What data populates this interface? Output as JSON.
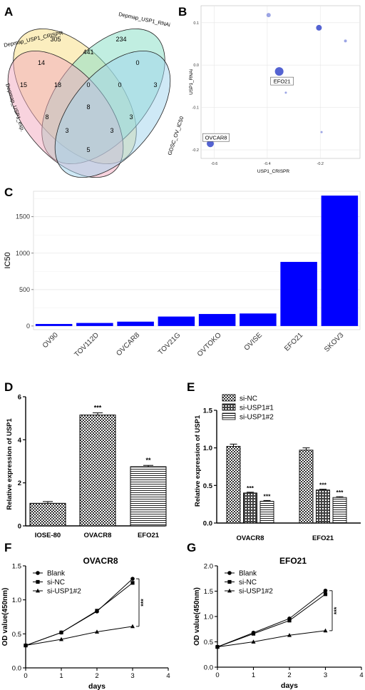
{
  "panel_letters": [
    "A",
    "B",
    "C",
    "D",
    "E",
    "F",
    "G"
  ],
  "chart_data": [
    {
      "type": "venn",
      "panel": "A",
      "sets": [
        "Depmap_USP1_CRISPR",
        "Depmap_USP1_RNAi",
        "Depmap_USP1_exp.",
        "GDSC_OV_IC50"
      ],
      "colors": [
        "#f7e08a",
        "#8ee0c8",
        "#f2a7bd",
        "#9fd3ee"
      ],
      "regions": {
        "crispr_only": "305",
        "rnai_only": "234",
        "exp_only": "15",
        "gdsc_only": "3",
        "crispr_rnai": "441",
        "crispr_exp": "14",
        "rnai_gdsc": "0",
        "exp_gdsc": "5",
        "crispr_gdsc": "0",
        "rnai_exp": "0",
        "crispr_rnai_exp": "18",
        "crispr_rnai_gdsc": "0",
        "crispr_exp_gdsc": "3",
        "rnai_exp_gdsc": "3",
        "all_four": "8",
        "exp_left": "8"
      }
    },
    {
      "type": "scatter",
      "panel": "B",
      "xlabel": "USP1_CRISPR",
      "ylabel": "USP1_RNAi",
      "xlim": [
        -0.65,
        -0.05
      ],
      "ylim": [
        -0.22,
        0.14
      ],
      "xticks": [
        "-0.6",
        "-0.4",
        "-0.2"
      ],
      "yticks": [
        "0.1",
        "0.0",
        "-0.1",
        "-0.2"
      ],
      "points": [
        {
          "x": -0.615,
          "y": -0.185,
          "size": 5,
          "label": "OVCAR8"
        },
        {
          "x": -0.355,
          "y": -0.015,
          "size": 6,
          "label": "EFO21"
        },
        {
          "x": -0.395,
          "y": 0.118,
          "size": 3,
          "label": ""
        },
        {
          "x": -0.205,
          "y": 0.088,
          "size": 4,
          "label": ""
        },
        {
          "x": -0.105,
          "y": 0.057,
          "size": 2,
          "label": ""
        },
        {
          "x": -0.33,
          "y": -0.065,
          "size": 1.5,
          "label": ""
        },
        {
          "x": -0.195,
          "y": -0.158,
          "size": 1.5,
          "label": ""
        }
      ],
      "grid": true
    },
    {
      "type": "bar",
      "panel": "C",
      "categories": [
        "OV90",
        "TOV112D",
        "OVCAR8",
        "TOV21G",
        "OVTOKO",
        "OVISE",
        "EFO21",
        "SKOV3"
      ],
      "values": [
        28,
        42,
        60,
        130,
        165,
        172,
        880,
        1790
      ],
      "ylabel": "IC50",
      "yticks": [
        "0",
        "500",
        "1000",
        "1500"
      ],
      "ylim": [
        -50,
        1850
      ],
      "color": "#0000ff",
      "grid": true
    },
    {
      "type": "bar",
      "panel": "D",
      "categories": [
        "IOSE-80",
        "OVACR8",
        "EFO21"
      ],
      "values": [
        1.05,
        5.15,
        2.75
      ],
      "errors": [
        0.08,
        0.1,
        0.06
      ],
      "significance": [
        "",
        "***",
        "**"
      ],
      "ylabel": "Relative expression of USP1",
      "yticks": [
        "0",
        "2",
        "4",
        "6"
      ],
      "ylim": [
        0,
        6
      ]
    },
    {
      "type": "bar",
      "panel": "E",
      "categories": [
        "OVACR8",
        "EFO21"
      ],
      "series": [
        {
          "name": "si-NC",
          "values": [
            1.02,
            0.97
          ],
          "errors": [
            0.03,
            0.03
          ],
          "significance": [
            "",
            ""
          ]
        },
        {
          "name": "si-USP1#1",
          "values": [
            0.4,
            0.44
          ],
          "errors": [
            0.01,
            0.01
          ],
          "significance": [
            "***",
            "***"
          ]
        },
        {
          "name": "si-USP1#2",
          "values": [
            0.29,
            0.34
          ],
          "errors": [
            0.01,
            0.01
          ],
          "significance": [
            "***",
            "***"
          ]
        }
      ],
      "ylabel": "Relative expression of USP1",
      "yticks": [
        "0.0",
        "0.5",
        "1.0",
        "1.5"
      ],
      "ylim": [
        0,
        1.5
      ]
    },
    {
      "type": "line",
      "panel": "F",
      "title": "OVACR8",
      "xlabel": "days",
      "ylabel": "OD value(450nm)",
      "x": [
        0,
        1,
        2,
        3
      ],
      "xticks": [
        "0",
        "1",
        "2",
        "3",
        "4"
      ],
      "yticks": [
        "0.0",
        "0.5",
        "1.0",
        "1.5"
      ],
      "xlim": [
        0,
        4
      ],
      "ylim": [
        0,
        1.5
      ],
      "series": [
        {
          "name": "Blank",
          "marker": "circle",
          "values": [
            0.33,
            0.52,
            0.83,
            1.31
          ]
        },
        {
          "name": "si-NC",
          "marker": "square",
          "values": [
            0.33,
            0.52,
            0.84,
            1.25
          ]
        },
        {
          "name": "si-USP1#2",
          "marker": "triangle",
          "values": [
            0.33,
            0.42,
            0.53,
            0.61
          ]
        }
      ],
      "significance": "***"
    },
    {
      "type": "line",
      "panel": "G",
      "title": "EFO21",
      "xlabel": "days",
      "ylabel": "OD value(450nm)",
      "x": [
        0,
        1,
        2,
        3
      ],
      "xticks": [
        "0",
        "1",
        "2",
        "3",
        "4"
      ],
      "yticks": [
        "0.0",
        "0.5",
        "1.0",
        "1.5",
        "2.0"
      ],
      "xlim": [
        0,
        4
      ],
      "ylim": [
        0,
        2.0
      ],
      "series": [
        {
          "name": "Blank",
          "marker": "circle",
          "values": [
            0.4,
            0.68,
            0.96,
            1.51
          ]
        },
        {
          "name": "si-NC",
          "marker": "square",
          "values": [
            0.4,
            0.66,
            0.92,
            1.44
          ]
        },
        {
          "name": "si-USP1#2",
          "marker": "triangle",
          "values": [
            0.4,
            0.5,
            0.63,
            0.72
          ]
        }
      ],
      "significance": "***"
    }
  ]
}
